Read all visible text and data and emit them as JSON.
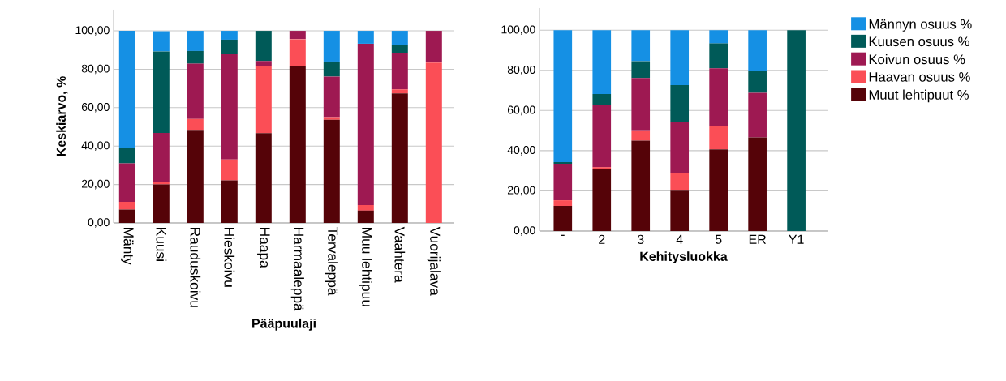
{
  "chart_data": [
    {
      "type": "bar",
      "stacked": true,
      "xlabel": "Pääpuulaji",
      "ylabel": "Keskiarvo, %",
      "categories": [
        "Mänty",
        "Kuusi",
        "Rauduskoivu",
        "Hieskoivu",
        "Haapa",
        "Harmaaleppä",
        "Tervaleppä",
        "Muu lehtipuu",
        "Vaahtera",
        "Vuorijalava"
      ],
      "series": [
        {
          "color": "#550308",
          "values": [
            7,
            20,
            48.4,
            22.2,
            46.7,
            81.5,
            53.7,
            6.4,
            67.4,
            0
          ]
        },
        {
          "color": "#fb4e56",
          "values": [
            4,
            1.2,
            5.7,
            10.8,
            34.8,
            14.2,
            1.4,
            2.9,
            2.1,
            83.5
          ]
        },
        {
          "color": "#9e1952",
          "values": [
            20,
            25.6,
            28.8,
            54.9,
            2.8,
            4.3,
            21.1,
            84,
            19.1,
            16.5
          ]
        },
        {
          "color": "#005a58",
          "values": [
            8,
            42.5,
            6.6,
            7.5,
            15.7,
            0,
            7.8,
            0,
            3.9,
            0
          ]
        },
        {
          "color": "#1590e4",
          "values": [
            61,
            10.5,
            10.5,
            4.6,
            0,
            0,
            16,
            6.7,
            7.5,
            0
          ]
        }
      ],
      "ylim": [
        0,
        111
      ],
      "yticks": [
        {
          "value": 0,
          "label": "0,00"
        },
        {
          "value": 20,
          "label": "20,00"
        },
        {
          "value": 40,
          "label": "40,00"
        },
        {
          "value": 60,
          "label": "60,00"
        },
        {
          "value": 80,
          "label": "80,00"
        },
        {
          "value": 100,
          "label": "100,00"
        }
      ],
      "grid": "y",
      "legend": false
    },
    {
      "type": "bar",
      "stacked": true,
      "xlabel": "Kehitysluokka",
      "categories": [
        "-",
        "2",
        "3",
        "4",
        "5",
        "ER",
        "Y1"
      ],
      "series": [
        {
          "name": "Muut lehtipuut %",
          "color": "#550308",
          "values": [
            12.5,
            30.9,
            45,
            20.1,
            40.7,
            46.6,
            0
          ]
        },
        {
          "name": "Haavan osuus %",
          "color": "#fb4e56",
          "values": [
            2.8,
            0.9,
            5.1,
            8.6,
            11.5,
            0,
            0
          ]
        },
        {
          "name": "Koivun osuus %",
          "color": "#9e1952",
          "values": [
            18.2,
            30.8,
            26.1,
            25.5,
            28.8,
            22.2,
            0
          ]
        },
        {
          "name": "Kuusen osuus %",
          "color": "#005a58",
          "values": [
            0.8,
            5.6,
            8.4,
            18.4,
            12.4,
            11.1,
            100
          ]
        },
        {
          "name": "Männyn osuus %",
          "color": "#1590e4",
          "values": [
            65.7,
            31.8,
            15.4,
            27.4,
            6.6,
            20.1,
            0
          ]
        }
      ],
      "ylim": [
        0,
        111
      ],
      "yticks": [
        {
          "value": 0,
          "label": "0,00"
        },
        {
          "value": 20,
          "label": "20,00"
        },
        {
          "value": 40,
          "label": "40,00"
        },
        {
          "value": 60,
          "label": "60,00"
        },
        {
          "value": 80,
          "label": "80,00"
        },
        {
          "value": 100,
          "label": "100,00"
        }
      ],
      "grid": "y",
      "legend": "right"
    }
  ]
}
